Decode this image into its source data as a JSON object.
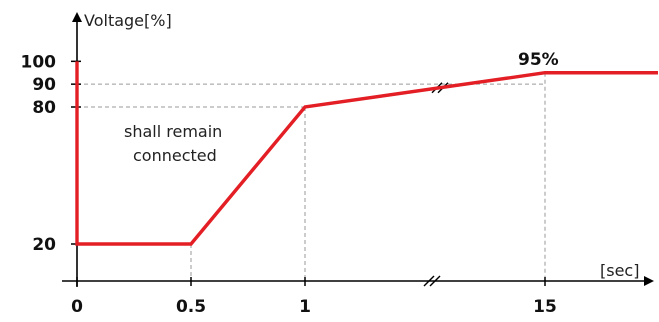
{
  "chart_data": {
    "type": "line",
    "ylabel": "Voltage[%]",
    "xlabel": "[sec]",
    "x_ticks": [
      "0",
      "0.5",
      "1",
      "15"
    ],
    "y_ticks": [
      "100",
      "90",
      "80",
      "20"
    ],
    "x_axis_break": true,
    "series": [
      {
        "x": [
          0,
          0,
          0.5,
          1,
          15
        ],
        "y": [
          100,
          20,
          20,
          80,
          95
        ],
        "extends_beyond_last_point": true
      }
    ],
    "annotations": {
      "region_text_line1": "shall remain",
      "region_text_line2": "connected",
      "peak_label": "95%"
    },
    "colors": {
      "line": "#e31e24",
      "axis": "#000000",
      "guides": "#9a9a9a"
    },
    "grid": false
  }
}
